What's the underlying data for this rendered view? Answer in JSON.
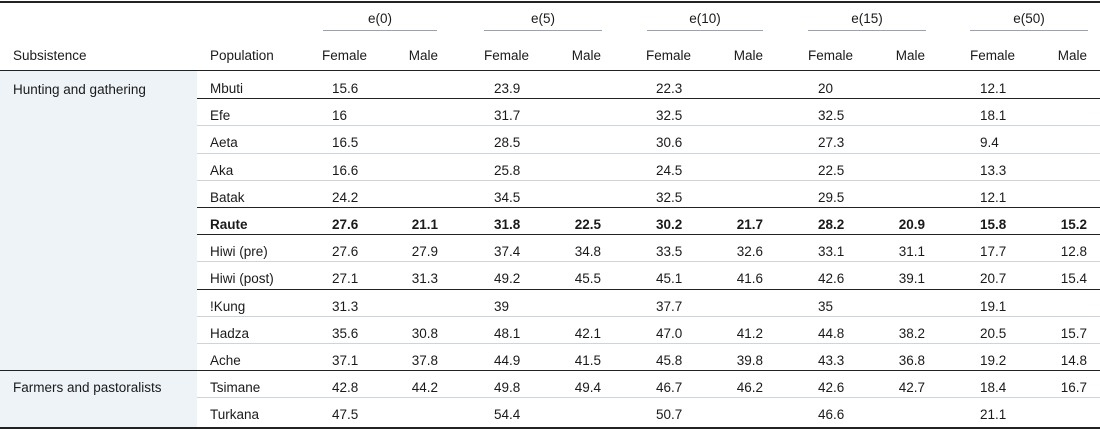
{
  "groups": [
    "e(0)",
    "e(5)",
    "e(10)",
    "e(15)",
    "e(50)"
  ],
  "headers": {
    "subsistence": "Subsistence",
    "population": "Population",
    "female": "Female",
    "male": "Male"
  },
  "subsistence_groups": [
    "Hunting and gathering",
    "Farmers and pastoralists"
  ],
  "rows": [
    {
      "pop": "Mbuti",
      "v": [
        "15.6",
        "",
        "23.9",
        "",
        "22.3",
        "",
        "20",
        "",
        "12.1",
        ""
      ]
    },
    {
      "pop": "Efe",
      "v": [
        "16",
        "",
        "31.7",
        "",
        "32.5",
        "",
        "32.5",
        "",
        "18.1",
        ""
      ]
    },
    {
      "pop": "Aeta",
      "v": [
        "16.5",
        "",
        "28.5",
        "",
        "30.6",
        "",
        "27.3",
        "",
        "9.4",
        ""
      ]
    },
    {
      "pop": "Aka",
      "v": [
        "16.6",
        "",
        "25.8",
        "",
        "24.5",
        "",
        "22.5",
        "",
        "13.3",
        ""
      ]
    },
    {
      "pop": "Batak",
      "v": [
        "24.2",
        "",
        "34.5",
        "",
        "32.5",
        "",
        "29.5",
        "",
        "12.1",
        ""
      ]
    },
    {
      "pop": "Raute",
      "v": [
        "27.6",
        "21.1",
        "31.8",
        "22.5",
        "30.2",
        "21.7",
        "28.2",
        "20.9",
        "15.8",
        "15.2"
      ]
    },
    {
      "pop": "Hiwi (pre)",
      "v": [
        "27.6",
        "27.9",
        "37.4",
        "34.8",
        "33.5",
        "32.6",
        "33.1",
        "31.1",
        "17.7",
        "12.8"
      ]
    },
    {
      "pop": "Hiwi (post)",
      "v": [
        "27.1",
        "31.3",
        "49.2",
        "45.5",
        "45.1",
        "41.6",
        "42.6",
        "39.1",
        "20.7",
        "15.4"
      ]
    },
    {
      "pop": "!Kung",
      "v": [
        "31.3",
        "",
        "39",
        "",
        "37.7",
        "",
        "35",
        "",
        "19.1",
        ""
      ]
    },
    {
      "pop": "Hadza",
      "v": [
        "35.6",
        "30.8",
        "48.1",
        "42.1",
        "47.0",
        "41.2",
        "44.8",
        "38.2",
        "20.5",
        "15.7"
      ]
    },
    {
      "pop": "Ache",
      "v": [
        "37.1",
        "37.8",
        "44.9",
        "41.5",
        "45.8",
        "39.8",
        "43.3",
        "36.8",
        "19.2",
        "14.8"
      ]
    },
    {
      "pop": "Tsimane",
      "v": [
        "42.8",
        "44.2",
        "49.8",
        "49.4",
        "46.7",
        "46.2",
        "42.6",
        "42.7",
        "18.4",
        "16.7"
      ]
    },
    {
      "pop": "Turkana",
      "v": [
        "47.5",
        "",
        "54.4",
        "",
        "50.7",
        "",
        "46.6",
        "",
        "21.1",
        ""
      ]
    }
  ]
}
